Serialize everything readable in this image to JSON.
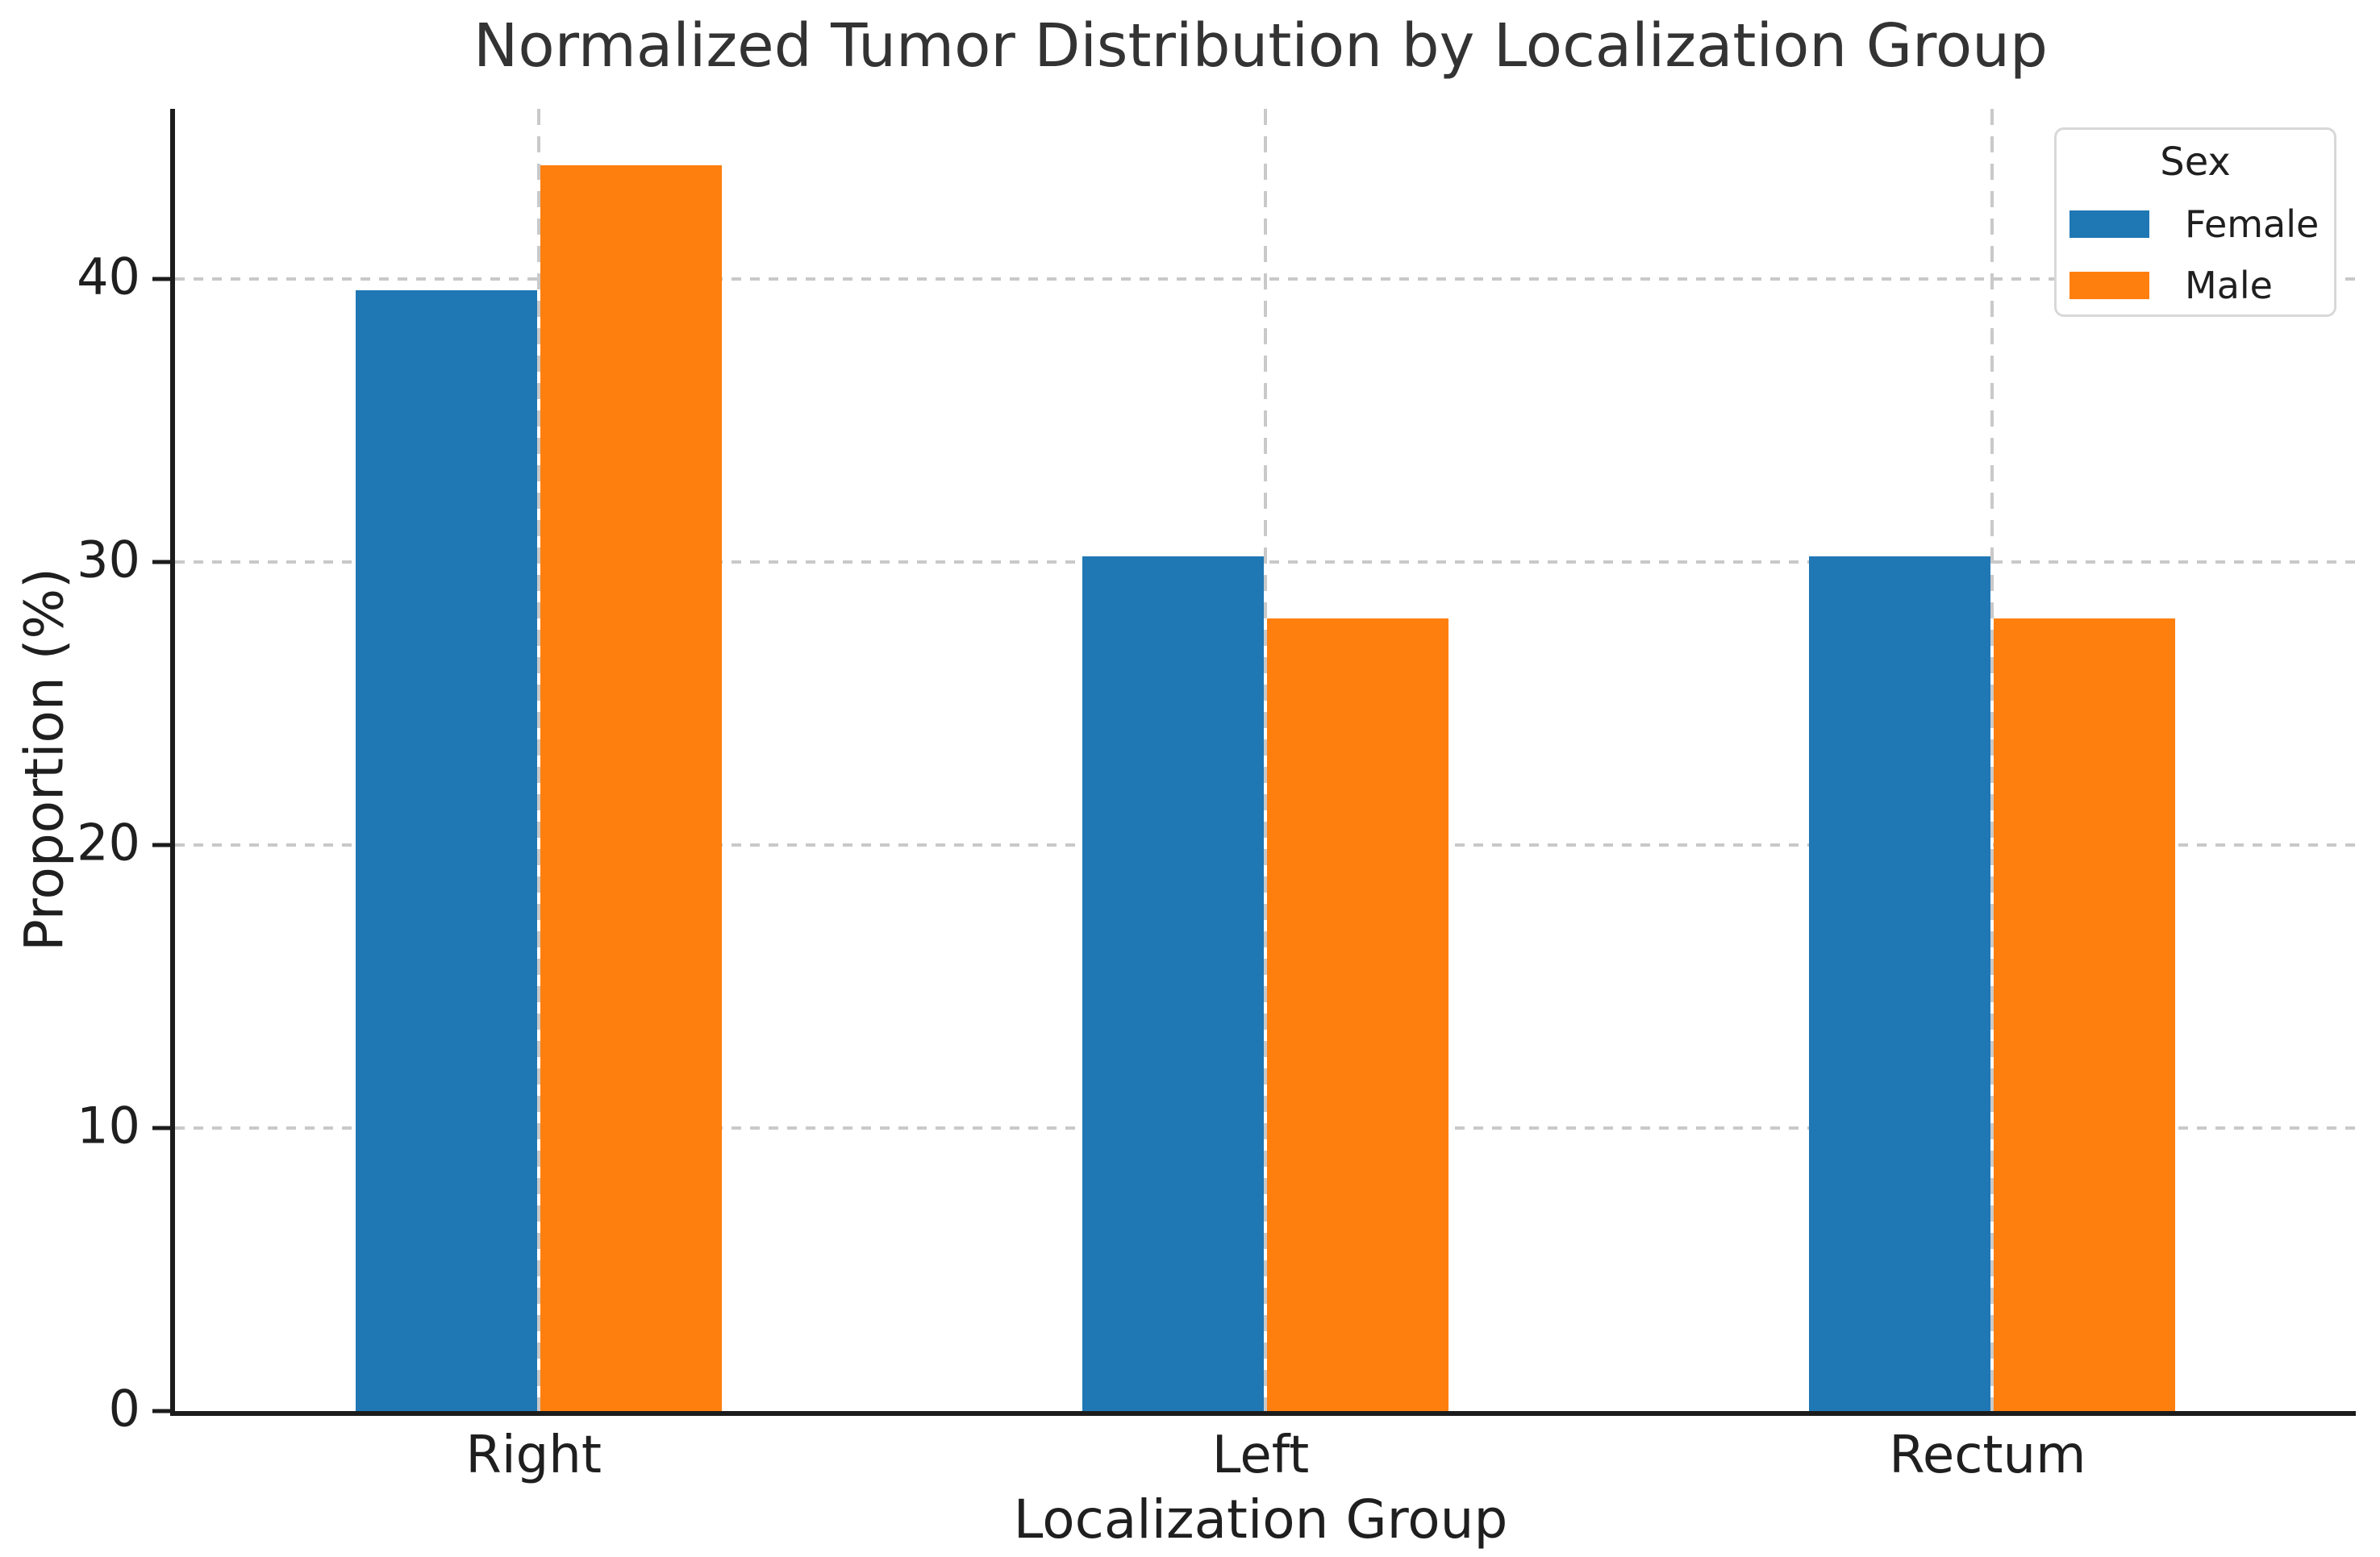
{
  "figure": {
    "background": "#ffffff"
  },
  "chart_data": {
    "type": "bar",
    "title": "Normalized Tumor Distribution by Localization Group",
    "xlabel": "Localization Group",
    "ylabel": "Proportion (%)",
    "categories": [
      "Right",
      "Left",
      "Rectum"
    ],
    "series": [
      {
        "name": "Female",
        "color": "#1f77b4",
        "values": [
          39.6,
          30.2,
          30.2
        ]
      },
      {
        "name": "Male",
        "color": "#ff7f0e",
        "values": [
          44.0,
          28.0,
          28.0
        ]
      }
    ],
    "ylim": [
      0,
      46
    ],
    "yticks": [
      0,
      10,
      20,
      30,
      40
    ],
    "grid": true,
    "grid_style": "dashed",
    "legend": {
      "title": "Sex",
      "position": "upper-right"
    }
  }
}
